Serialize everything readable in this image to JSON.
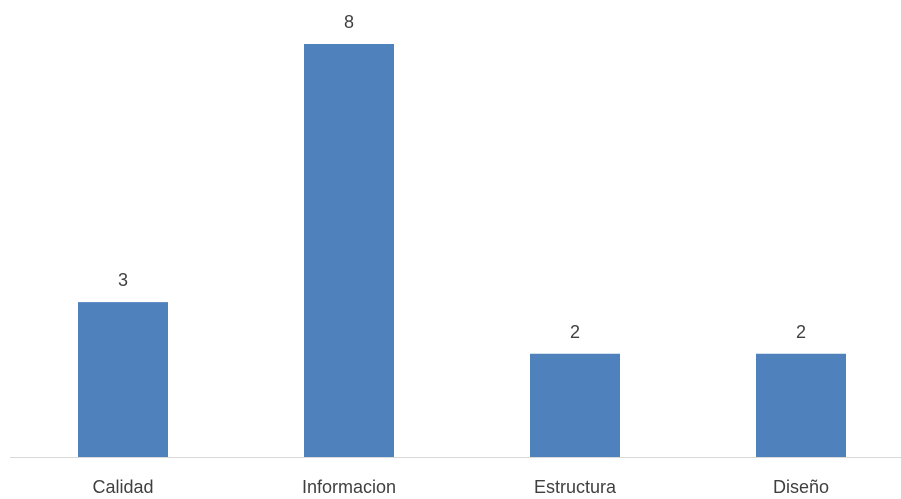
{
  "chart_data": {
    "type": "bar",
    "categories": [
      "Calidad",
      "Informacion",
      "Estructura",
      "Diseño"
    ],
    "values": [
      3,
      8,
      2,
      2
    ],
    "title": "",
    "xlabel": "",
    "ylabel": "",
    "ylim": [
      0,
      8
    ],
    "grid": false,
    "legend": "none",
    "data_labels": true,
    "bar_color": "#4F81BD",
    "axis_color": "#D9D9D9"
  }
}
